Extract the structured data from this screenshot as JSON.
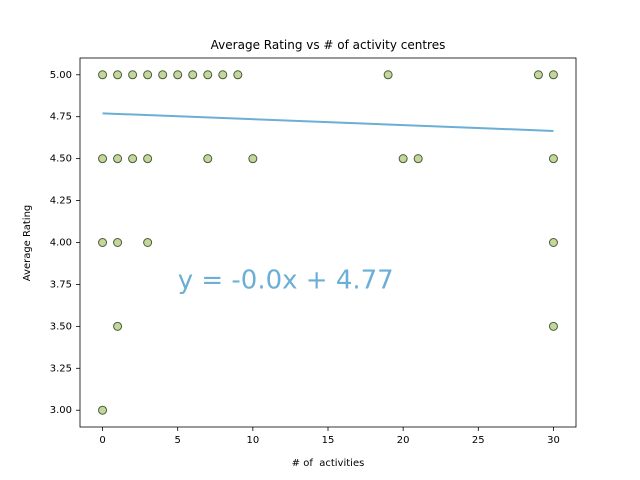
{
  "chart_data": {
    "type": "scatter",
    "title": "Average Rating vs # of activity centres",
    "xlabel": "# of  activities",
    "ylabel": "Average Rating",
    "xlim": [
      -1.5,
      31.5
    ],
    "ylim": [
      2.9,
      5.1
    ],
    "xticks": [
      0,
      5,
      10,
      15,
      20,
      25,
      30
    ],
    "yticks": [
      3.0,
      3.25,
      3.5,
      3.75,
      4.0,
      4.25,
      4.5,
      4.75,
      5.0
    ],
    "ytick_labels": [
      "3.00",
      "3.25",
      "3.50",
      "3.75",
      "4.00",
      "4.25",
      "4.50",
      "4.75",
      "5.00"
    ],
    "grid": false,
    "points": [
      {
        "x": 0,
        "y": 5.0
      },
      {
        "x": 1,
        "y": 5.0
      },
      {
        "x": 2,
        "y": 5.0
      },
      {
        "x": 3,
        "y": 5.0
      },
      {
        "x": 4,
        "y": 5.0
      },
      {
        "x": 5,
        "y": 5.0
      },
      {
        "x": 6,
        "y": 5.0
      },
      {
        "x": 7,
        "y": 5.0
      },
      {
        "x": 8,
        "y": 5.0
      },
      {
        "x": 9,
        "y": 5.0
      },
      {
        "x": 19,
        "y": 5.0
      },
      {
        "x": 29,
        "y": 5.0
      },
      {
        "x": 30,
        "y": 5.0
      },
      {
        "x": 0,
        "y": 4.5
      },
      {
        "x": 1,
        "y": 4.5
      },
      {
        "x": 2,
        "y": 4.5
      },
      {
        "x": 3,
        "y": 4.5
      },
      {
        "x": 7,
        "y": 4.5
      },
      {
        "x": 10,
        "y": 4.5
      },
      {
        "x": 20,
        "y": 4.5
      },
      {
        "x": 21,
        "y": 4.5
      },
      {
        "x": 30,
        "y": 4.5
      },
      {
        "x": 0,
        "y": 4.0
      },
      {
        "x": 1,
        "y": 4.0
      },
      {
        "x": 3,
        "y": 4.0
      },
      {
        "x": 30,
        "y": 4.0
      },
      {
        "x": 1,
        "y": 3.5
      },
      {
        "x": 30,
        "y": 3.5
      },
      {
        "x": 0,
        "y": 3.0
      }
    ],
    "trendline": {
      "slope": -0.0035,
      "intercept": 4.77,
      "x_range": [
        0,
        30
      ],
      "label": "y = -0.0x + 4.77",
      "label_anchor": {
        "x": 5,
        "y": 3.77
      }
    },
    "colors": {
      "marker_fill": "#c3d69b",
      "marker_edge": "#4a5a3a",
      "trendline": "#6baed6",
      "label": "#6baed6"
    }
  }
}
